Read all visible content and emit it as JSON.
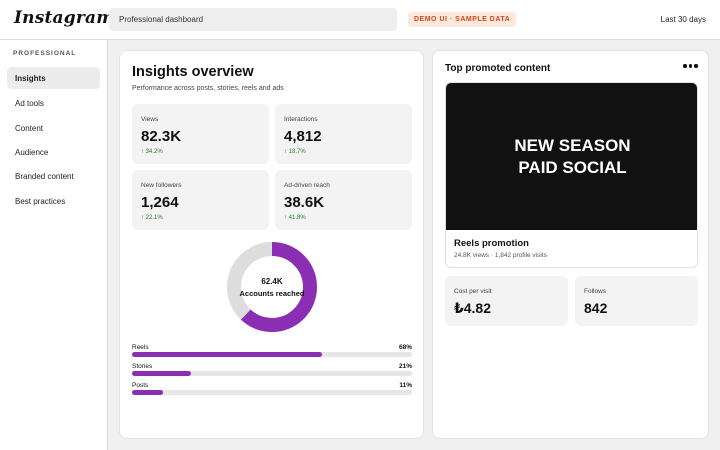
{
  "app": {
    "logo": "Instagram"
  },
  "header": {
    "search_value": "Professional dashboard",
    "badge": "DEMO UI · SAMPLE DATA",
    "range": "Last 30 days"
  },
  "sidebar": {
    "section": "PROFESSIONAL",
    "items": [
      {
        "label": "Insights",
        "active": true
      },
      {
        "label": "Ad tools",
        "active": false
      },
      {
        "label": "Content",
        "active": false
      },
      {
        "label": "Audience",
        "active": false
      },
      {
        "label": "Branded content",
        "active": false
      },
      {
        "label": "Best practices",
        "active": false
      }
    ]
  },
  "overview": {
    "title": "Insights overview",
    "subtitle": "Performance across posts, stories, reels and ads",
    "stats": [
      {
        "label": "Views",
        "value": "82.3K",
        "change": "↑ 34.2%"
      },
      {
        "label": "Interactions",
        "value": "4,812",
        "change": "↑ 18.7%"
      },
      {
        "label": "New followers",
        "value": "1,264",
        "change": "↑ 22.1%"
      },
      {
        "label": "Ad-driven reach",
        "value": "38.6K",
        "change": "↑ 41.8%"
      }
    ],
    "donut": {
      "value": "62.4K",
      "label": "Accounts reached",
      "fraction": 0.62,
      "color": "#8a2fb3",
      "track": "#dddddd"
    },
    "breakdown": [
      {
        "name": "Reels",
        "pct": "68%",
        "fraction": 0.68
      },
      {
        "name": "Stories",
        "pct": "21%",
        "fraction": 0.21
      },
      {
        "name": "Posts",
        "pct": "11%",
        "fraction": 0.11
      }
    ]
  },
  "top_content": {
    "title": "Top promoted content",
    "menu_icon": "more-horizontal-icon",
    "headline": "NEW SEASON\nPAID SOCIAL",
    "name": "Reels promotion",
    "meta": "24.8K views · 1,842 profile visits",
    "metrics": [
      {
        "label": "Cost per visit",
        "value": "₺4.82"
      },
      {
        "label": "Follows",
        "value": "842"
      }
    ]
  },
  "colors": {
    "accent": "#8a2fb3",
    "positive": "#1f7a3a",
    "badge_text": "#d4481a",
    "badge_bg": "#fde8de"
  }
}
